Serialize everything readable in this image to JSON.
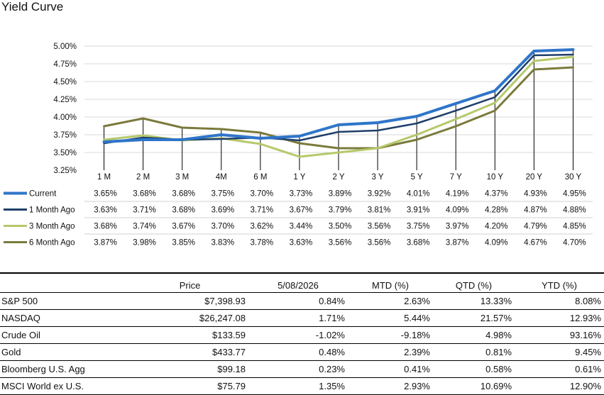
{
  "chart_data": {
    "type": "line",
    "title": "Yield Curve",
    "categories": [
      "1 M",
      "2 M",
      "3 M",
      "4M",
      "6 M",
      "1 Y",
      "2 Y",
      "3 Y",
      "5 Y",
      "7 Y",
      "10 Y",
      "20 Y",
      "30 Y"
    ],
    "ylim": [
      3.25,
      5.0
    ],
    "yticks": [
      "5.00%",
      "4.75%",
      "4.50%",
      "4.25%",
      "4.00%",
      "3.75%",
      "3.50%",
      "3.25%"
    ],
    "ytick_values": [
      5.0,
      4.75,
      4.5,
      4.25,
      4.0,
      3.75,
      3.5,
      3.25
    ],
    "grid": "horizontal",
    "legend": "data-table",
    "series": [
      {
        "name": "Current",
        "color": "#2e75c9",
        "values": [
          3.65,
          3.68,
          3.68,
          3.75,
          3.7,
          3.73,
          3.89,
          3.92,
          4.01,
          4.19,
          4.37,
          4.93,
          4.95
        ],
        "labels": [
          "3.65%",
          "3.68%",
          "3.68%",
          "3.75%",
          "3.70%",
          "3.73%",
          "3.89%",
          "3.92%",
          "4.01%",
          "4.19%",
          "4.37%",
          "4.93%",
          "4.95%"
        ]
      },
      {
        "name": "1 Month Ago",
        "color": "#1f3f6b",
        "values": [
          3.63,
          3.71,
          3.68,
          3.69,
          3.71,
          3.67,
          3.79,
          3.81,
          3.91,
          4.09,
          4.28,
          4.87,
          4.88
        ],
        "labels": [
          "3.63%",
          "3.71%",
          "3.68%",
          "3.69%",
          "3.71%",
          "3.67%",
          "3.79%",
          "3.81%",
          "3.91%",
          "4.09%",
          "4.28%",
          "4.87%",
          "4.88%"
        ]
      },
      {
        "name": "3 Month Ago",
        "color": "#b5c96a",
        "values": [
          3.68,
          3.74,
          3.67,
          3.7,
          3.62,
          3.44,
          3.5,
          3.56,
          3.75,
          3.97,
          4.2,
          4.79,
          4.85
        ],
        "labels": [
          "3.68%",
          "3.74%",
          "3.67%",
          "3.70%",
          "3.62%",
          "3.44%",
          "3.50%",
          "3.56%",
          "3.75%",
          "3.97%",
          "4.20%",
          "4.79%",
          "4.85%"
        ]
      },
      {
        "name": "6 Month Ago",
        "color": "#7a7a3c",
        "values": [
          3.87,
          3.98,
          3.85,
          3.83,
          3.78,
          3.63,
          3.56,
          3.56,
          3.68,
          3.87,
          4.09,
          4.67,
          4.7
        ],
        "labels": [
          "3.87%",
          "3.98%",
          "3.85%",
          "3.83%",
          "3.78%",
          "3.63%",
          "3.56%",
          "3.56%",
          "3.68%",
          "3.87%",
          "4.09%",
          "4.67%",
          "4.70%"
        ]
      }
    ]
  },
  "market_table": {
    "headers": [
      "",
      "Price",
      "5/08/2026",
      "MTD (%)",
      "QTD (%)",
      "YTD (%)"
    ],
    "rows": [
      [
        "S&P 500",
        "$7,398.93",
        "0.84%",
        "2.63%",
        "13.33%",
        "8.08%"
      ],
      [
        "NASDAQ",
        "$26,247.08",
        "1.71%",
        "5.44%",
        "21.57%",
        "12.93%"
      ],
      [
        "Crude Oil",
        "$133.59",
        "-1.02%",
        "-9.18%",
        "4.98%",
        "93.16%"
      ],
      [
        "Gold",
        "$433.77",
        "0.48%",
        "2.39%",
        "0.81%",
        "9.45%"
      ],
      [
        "Bloomberg U.S. Agg",
        "$99.18",
        "0.23%",
        "0.41%",
        "0.58%",
        "0.61%"
      ],
      [
        "MSCI World ex U.S.",
        "$75.79",
        "1.35%",
        "2.93%",
        "10.69%",
        "12.90%"
      ]
    ]
  }
}
